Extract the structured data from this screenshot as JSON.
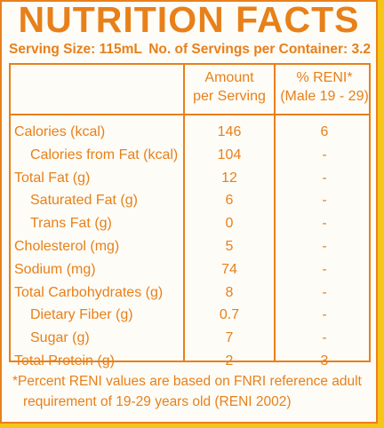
{
  "title": "NUTRITION FACTS",
  "serving": {
    "size": "Serving Size: 115mL",
    "per_container": "No. of Servings per Container: 3.2"
  },
  "columns": {
    "amount_line1": "Amount",
    "amount_line2": "per Serving",
    "reni_line1": "% RENI*",
    "reni_line2": "(Male 19 - 29)"
  },
  "rows": [
    {
      "nutrient": "Calories (kcal)",
      "amount": "146",
      "reni": "6",
      "sub": false
    },
    {
      "nutrient": "Calories from Fat (kcal)",
      "amount": "104",
      "reni": "-",
      "sub": true
    },
    {
      "nutrient": "Total Fat (g)",
      "amount": "12",
      "reni": "-",
      "sub": false
    },
    {
      "nutrient": "Saturated Fat (g)",
      "amount": "6",
      "reni": "-",
      "sub": true
    },
    {
      "nutrient": "Trans Fat (g)",
      "amount": "0",
      "reni": "-",
      "sub": true
    },
    {
      "nutrient": "Cholesterol (mg)",
      "amount": "5",
      "reni": "-",
      "sub": false
    },
    {
      "nutrient": "Sodium (mg)",
      "amount": "74",
      "reni": "-",
      "sub": false
    },
    {
      "nutrient": "Total Carbohydrates (g)",
      "amount": "8",
      "reni": "-",
      "sub": false
    },
    {
      "nutrient": "Dietary Fiber (g)",
      "amount": "0.7",
      "reni": "-",
      "sub": true
    },
    {
      "nutrient": "Sugar (g)",
      "amount": "7",
      "reni": "-",
      "sub": true
    },
    {
      "nutrient": "Total Protein (g)",
      "amount": "2",
      "reni": "3",
      "sub": false
    }
  ],
  "footnote": {
    "line1": "*Percent RENI values are based on FNRI reference adult",
    "line2": "requirement of 19-29 years old (RENI 2002)"
  },
  "colors": {
    "accent": "#e8801a",
    "background": "#f5c518",
    "panel": "#fdfcf7"
  }
}
